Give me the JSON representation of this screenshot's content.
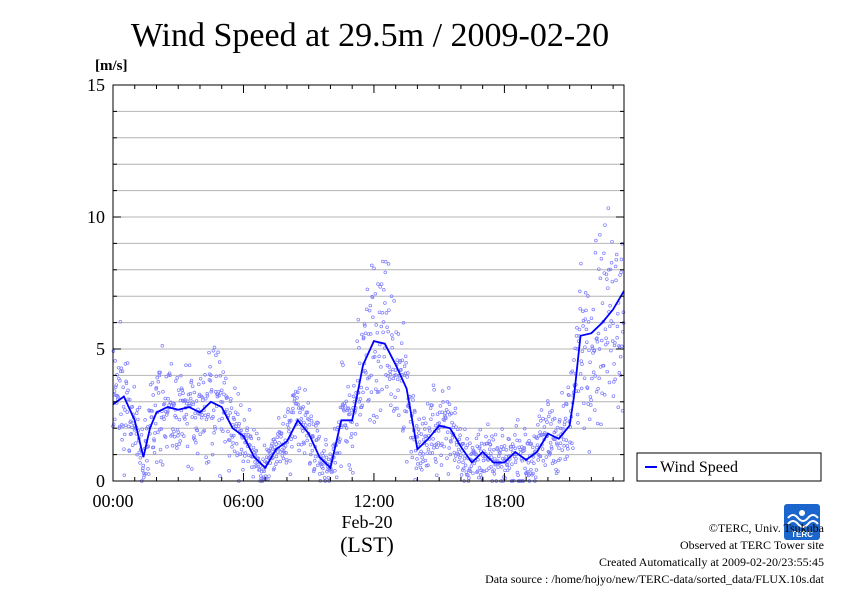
{
  "chart_data": {
    "type": "scatter",
    "title": "Wind Speed at 29.5m / 2009-02-20",
    "ylabel": "[m/s]",
    "xlabel": "(LST)",
    "date_label": "Feb-20",
    "ylim": [
      0,
      15
    ],
    "xlim_hours": [
      0,
      23.5
    ],
    "y_ticks": [
      "0",
      "5",
      "10",
      "15"
    ],
    "x_ticks": [
      "00:00",
      "06:00",
      "12:00",
      "18:00"
    ],
    "grid": true,
    "legend_position": "bottom-right, outside plot",
    "series": [
      {
        "name": "Wind Speed",
        "color": "#0000ff",
        "x_hours": [
          0,
          0.5,
          1,
          1.4,
          1.7,
          2,
          2.5,
          3,
          3.5,
          4,
          4.5,
          5,
          5.5,
          6,
          6.5,
          7,
          7.5,
          8,
          8.5,
          9,
          9.5,
          10,
          10.5,
          11,
          11.5,
          12,
          12.5,
          13,
          13.5,
          14,
          14.5,
          15,
          15.5,
          16,
          16.5,
          17,
          17.5,
          18,
          18.5,
          19,
          19.5,
          20,
          20.5,
          21,
          21.2,
          21.5,
          22,
          22.5,
          23,
          23.5
        ],
        "values": [
          2.9,
          3.2,
          2.3,
          0.9,
          2.0,
          2.6,
          2.8,
          2.7,
          2.8,
          2.6,
          3.0,
          2.8,
          2.0,
          1.7,
          0.9,
          0.5,
          1.2,
          1.5,
          2.3,
          1.8,
          0.9,
          0.5,
          2.3,
          2.3,
          4.4,
          5.3,
          5.2,
          4.4,
          3.5,
          1.2,
          1.6,
          2.1,
          2.0,
          1.3,
          0.7,
          1.1,
          0.7,
          0.7,
          1.1,
          0.8,
          1.1,
          1.8,
          1.6,
          2.1,
          3.2,
          5.5,
          5.6,
          6.0,
          6.5,
          7.2
        ]
      }
    ]
  },
  "credits": {
    "line1": "©TERC, Univ. Tsukuba",
    "line2": "Observed at TERC Tower site",
    "line3": "Created Automatically at 2009-02-20/23:55:45",
    "line4": "Data source : /home/hojyo/new/TERC-data/sorted_data/FLUX.10s.dat"
  },
  "logo": {
    "icon": "terc-logo-icon",
    "text": "TERC",
    "color": "#1a66cc"
  },
  "colors": {
    "series": "#0000ff",
    "points": "#7b7bff",
    "grid": "#b4b4b4"
  }
}
